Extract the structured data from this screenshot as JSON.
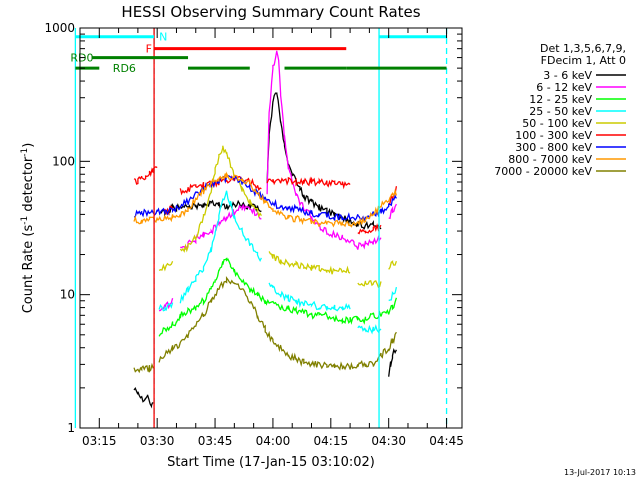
{
  "chart_data": {
    "type": "line",
    "title": "HESSI Observing Summary Count Rates",
    "xlabel": "Start Time (17-Jan-15 03:10:02)",
    "ylabel": "Count Rate (s⁻¹ detector⁻¹)",
    "ylabel_parts": {
      "main": "Count Rate (s",
      "sup1": "-1",
      "mid": " detector",
      "sup2": "-1",
      "end": ")"
    },
    "x_unit": "minutes after 03:10:02",
    "xlim": [
      0,
      99
    ],
    "ylim": [
      1,
      1000
    ],
    "yscale": "log",
    "grid": false,
    "legend_position": "right",
    "x_ticks": [
      {
        "v": 5,
        "label": "03:15"
      },
      {
        "v": 20,
        "label": "03:30"
      },
      {
        "v": 35,
        "label": "03:45"
      },
      {
        "v": 50,
        "label": "04:00"
      },
      {
        "v": 65,
        "label": "04:15"
      },
      {
        "v": 80,
        "label": "04:30"
      },
      {
        "v": 95,
        "label": "04:45"
      }
    ],
    "y_ticks": [
      {
        "v": 1,
        "label": "1"
      },
      {
        "v": 10,
        "label": "10"
      },
      {
        "v": 100,
        "label": "100"
      },
      {
        "v": 1000,
        "label": "1000"
      }
    ],
    "legend": {
      "header": [
        "Det 1,3,5,6,7,9,",
        "FDecim 1, Att 0"
      ]
    },
    "series": [
      {
        "name": "3 - 6 keV",
        "color": "#000000",
        "x": [
          14,
          15,
          17,
          17.5,
          18.5,
          19,
          20,
          21,
          22,
          23,
          24,
          25,
          26,
          28,
          30,
          32,
          34,
          36,
          38,
          40,
          42,
          44,
          46,
          47,
          48,
          48.5,
          49,
          50,
          51,
          52,
          53,
          54,
          55,
          56,
          57,
          58,
          60,
          62,
          64,
          66,
          68,
          70,
          71,
          72,
          74,
          76,
          78,
          79,
          80,
          80.5,
          81,
          82
        ],
        "y": [
          2,
          1.8,
          1.6,
          1.7,
          1.5,
          1.6,
          null,
          40,
          42,
          43,
          45,
          44,
          46,
          45,
          47,
          46,
          48,
          47,
          46,
          48,
          47,
          46,
          45,
          44,
          null,
          70,
          150,
          280,
          330,
          200,
          130,
          95,
          80,
          70,
          62,
          55,
          50,
          45,
          42,
          40,
          38,
          36,
          35,
          34,
          33,
          33,
          32,
          null,
          2.5,
          3,
          3.5,
          4
        ]
      },
      {
        "name": "6 - 12 keV",
        "color": "#ff00ff",
        "x": [
          20.5,
          22,
          24,
          25,
          26,
          28,
          30,
          32,
          34,
          36,
          38,
          40,
          42,
          44,
          46,
          47,
          48,
          48.5,
          49,
          50,
          51,
          51.5,
          52,
          53,
          54,
          55,
          56,
          58,
          60,
          62,
          64,
          66,
          68,
          70,
          71,
          72,
          74,
          76,
          78,
          79,
          80,
          81,
          82
        ],
        "y": [
          8,
          8,
          9,
          null,
          22,
          24,
          26,
          28,
          30,
          34,
          38,
          42,
          45,
          44,
          40,
          36,
          null,
          60,
          220,
          500,
          640,
          560,
          330,
          150,
          90,
          70,
          55,
          45,
          38,
          33,
          30,
          28,
          27,
          25,
          24,
          23,
          24,
          25,
          26,
          null,
          38,
          42,
          48
        ]
      },
      {
        "name": "12 - 25 keV",
        "color": "#00ff00",
        "x": [
          20.5,
          22,
          24,
          25,
          26,
          28,
          30,
          32,
          34,
          35,
          36,
          37,
          38,
          39,
          40,
          42,
          44,
          46,
          48,
          50,
          52,
          54,
          56,
          58,
          60,
          62,
          64,
          66,
          68,
          70,
          72,
          74,
          76,
          78,
          80,
          81,
          82
        ],
        "y": [
          5,
          5.5,
          6,
          6,
          7,
          7.5,
          8,
          9,
          11,
          13,
          15,
          17,
          19,
          17,
          15,
          13,
          11,
          10,
          9,
          8.5,
          8,
          8,
          7.5,
          7.5,
          7,
          7,
          7,
          6.5,
          6.5,
          6.5,
          6.5,
          6.5,
          7,
          7,
          7.5,
          8,
          9
        ]
      },
      {
        "name": "25 - 50 keV",
        "color": "#00ffff",
        "x": [
          20.5,
          22,
          24,
          25,
          26,
          28,
          30,
          32,
          34,
          35,
          36,
          37,
          38,
          39,
          40,
          42,
          44,
          46,
          47,
          48,
          49,
          50,
          52,
          54,
          56,
          58,
          60,
          62,
          64,
          66,
          68,
          70,
          71,
          72,
          74,
          76,
          78,
          79,
          80,
          81,
          82
        ],
        "y": [
          8,
          8,
          8.5,
          null,
          9,
          11,
          13,
          16,
          22,
          28,
          38,
          50,
          58,
          48,
          38,
          30,
          24,
          20,
          18,
          null,
          12,
          11,
          10,
          9.5,
          9,
          8.5,
          8.5,
          8,
          8,
          8,
          8,
          8,
          null,
          5.5,
          5.5,
          5.5,
          5.5,
          null,
          9,
          10,
          11
        ]
      },
      {
        "name": "50 - 100 keV",
        "color": "#cccc00",
        "x": [
          20.5,
          22,
          24,
          25,
          26,
          28,
          30,
          32,
          34,
          35,
          36,
          37,
          38,
          39,
          40,
          42,
          44,
          46,
          47,
          48,
          49,
          50,
          52,
          54,
          56,
          58,
          60,
          62,
          64,
          66,
          68,
          70,
          71,
          72,
          74,
          76,
          78,
          79,
          80,
          81,
          82
        ],
        "y": [
          16,
          16,
          17,
          null,
          21,
          23,
          27,
          38,
          60,
          85,
          110,
          130,
          112,
          95,
          78,
          62,
          50,
          42,
          38,
          null,
          20,
          19,
          18,
          17,
          17,
          16,
          16,
          16,
          15,
          15,
          15,
          15,
          null,
          12,
          12,
          12,
          12,
          null,
          16,
          17,
          18
        ]
      },
      {
        "name": "100 - 300 keV",
        "color": "#ff0000",
        "x": [
          14,
          15,
          16,
          17,
          18,
          19,
          20,
          20.5,
          22,
          24,
          25,
          26,
          28,
          30,
          32,
          34,
          36,
          38,
          40,
          42,
          44,
          46,
          47,
          48,
          48.5,
          50,
          52,
          54,
          56,
          58,
          60,
          62,
          64,
          66,
          68,
          70,
          71,
          72,
          74,
          76,
          78,
          79,
          80,
          81,
          82
        ],
        "y": [
          70,
          72,
          75,
          78,
          80,
          85,
          90,
          null,
          42,
          44,
          null,
          60,
          62,
          64,
          66,
          68,
          70,
          72,
          74,
          73,
          70,
          66,
          62,
          null,
          70,
          70,
          71,
          71,
          70,
          70,
          70,
          70,
          69,
          68,
          68,
          67,
          null,
          30,
          30,
          31,
          32,
          null,
          48,
          55,
          62
        ]
      },
      {
        "name": "300 - 800 keV",
        "color": "#0000ff",
        "x": [
          14,
          16,
          18,
          20,
          22,
          24,
          26,
          28,
          30,
          32,
          34,
          36,
          38,
          40,
          42,
          44,
          46,
          48,
          50,
          52,
          54,
          56,
          58,
          60,
          62,
          64,
          66,
          68,
          70,
          72,
          74,
          76,
          78,
          80,
          82
        ],
        "y": [
          40,
          41,
          42,
          42,
          42,
          44,
          46,
          50,
          56,
          63,
          68,
          72,
          74,
          73,
          70,
          64,
          57,
          52,
          48,
          46,
          45,
          44,
          42,
          41,
          40,
          39,
          38,
          38,
          38,
          38,
          38,
          40,
          42,
          46,
          54
        ]
      },
      {
        "name": "800 - 7000 keV",
        "color": "#ff9900",
        "x": [
          14,
          16,
          18,
          20,
          22,
          24,
          26,
          28,
          30,
          32,
          34,
          36,
          38,
          40,
          42,
          44,
          46,
          48,
          50,
          52,
          54,
          56,
          58,
          60,
          62,
          64,
          66,
          68,
          70,
          72,
          74,
          76,
          78,
          80,
          82
        ],
        "y": [
          36,
          36,
          37,
          37,
          37,
          38,
          40,
          44,
          52,
          60,
          68,
          74,
          78,
          77,
          74,
          68,
          58,
          50,
          44,
          40,
          38,
          37,
          36,
          35,
          34,
          34,
          34,
          34,
          34,
          35,
          36,
          40,
          46,
          52,
          58
        ]
      },
      {
        "name": "7000 - 20000 keV",
        "color": "#808000",
        "x": [
          14,
          16,
          18,
          19,
          20,
          20.5,
          22,
          24,
          26,
          28,
          30,
          32,
          34,
          36,
          38,
          40,
          42,
          44,
          46,
          48,
          50,
          52,
          54,
          56,
          58,
          60,
          62,
          64,
          66,
          68,
          70,
          72,
          74,
          76,
          78,
          80,
          81,
          82
        ],
        "y": [
          2.7,
          2.8,
          2.8,
          2.9,
          null,
          3.2,
          3.5,
          4,
          4.2,
          5,
          6,
          7,
          9,
          11,
          13,
          12,
          11,
          9,
          7,
          5.5,
          4.5,
          4,
          3.5,
          3.3,
          3.1,
          3,
          3,
          2.9,
          2.9,
          2.9,
          2.9,
          3,
          3,
          3,
          3.5,
          4,
          4.5,
          5
        ]
      }
    ],
    "annotations": {
      "status_bars": [
        {
          "label": "N",
          "color": "#00ffff",
          "y": 860,
          "segments": [
            [
              -1.2,
              19.2
            ],
            [
              77.5,
              95
            ]
          ],
          "label_x": 20.5
        },
        {
          "label": "F",
          "color": "#ff0000",
          "y": 700,
          "segments": [
            [
              19.2,
              69
            ]
          ],
          "label_x": 17
        },
        {
          "label": "RD0",
          "color": "#008000",
          "y": 600,
          "segments": [
            [
              3,
              28
            ]
          ],
          "label_x": -2.5
        },
        {
          "label": "RD6",
          "color": "#008000",
          "y": 500,
          "segments": [
            [
              -1.2,
              5
            ],
            [
              28,
              44
            ],
            [
              53,
              69
            ],
            [
              69,
              95
            ]
          ],
          "label_x": 8.5
        }
      ],
      "markers": [
        {
          "color": "#00ffff",
          "style": "solid",
          "x": [
            -1.2,
            77.5
          ]
        },
        {
          "color": "#00ffff",
          "style": "dash",
          "x": [
            19.2,
            95
          ]
        },
        {
          "color": "#ff0000",
          "style": "solid",
          "x": [
            19.2
          ]
        }
      ]
    }
  },
  "footer": {
    "timestamp": "13-Jul-2017 10:13"
  }
}
